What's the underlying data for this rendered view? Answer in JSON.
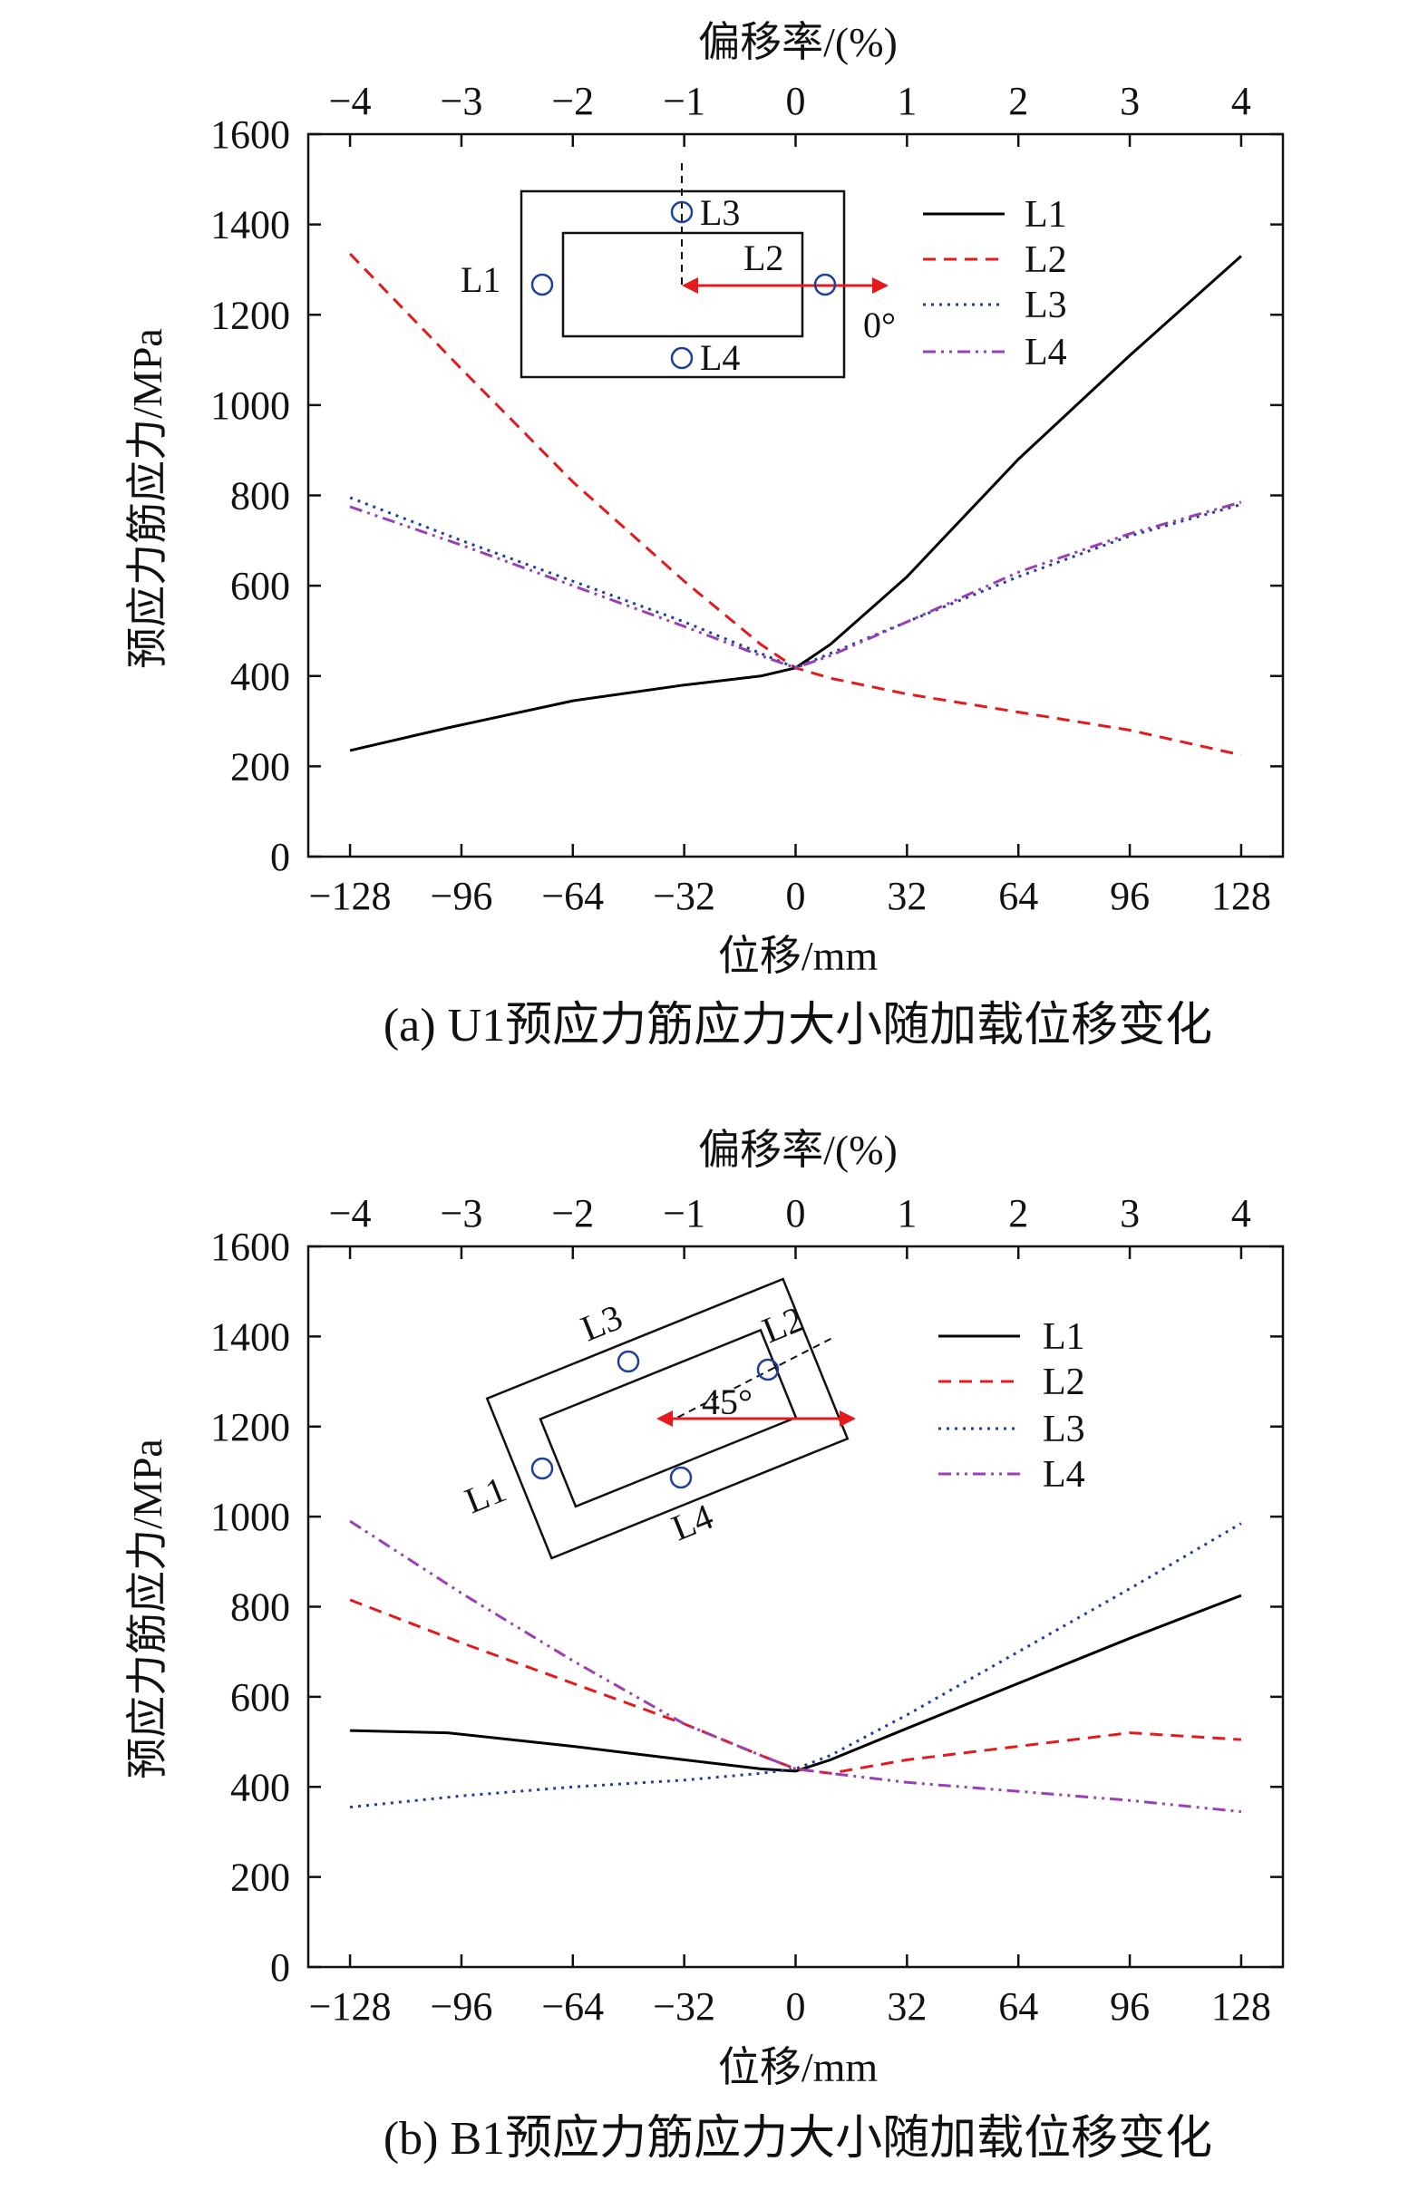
{
  "chart_data": [
    {
      "type": "line",
      "id": "U1",
      "caption": "(a) U1预应力筋应力大小随加载位移变化",
      "xlabel": "位移/mm",
      "ylabel": "预应力筋应力/MPa",
      "x2label": "偏移率/(%)",
      "xlim": [
        -140,
        140
      ],
      "ylim": [
        0,
        1600
      ],
      "xticks": [
        "−128",
        "−96",
        "−64",
        "−32",
        "0",
        "32",
        "64",
        "96",
        "128"
      ],
      "xtick_values": [
        -128,
        -96,
        -64,
        -32,
        0,
        32,
        64,
        96,
        128
      ],
      "yticks": [
        "0",
        "200",
        "400",
        "600",
        "800",
        "1000",
        "1200",
        "1400",
        "1600"
      ],
      "ytick_values": [
        0,
        200,
        400,
        600,
        800,
        1000,
        1200,
        1400,
        1600
      ],
      "x2ticks": [
        "−4",
        "−3",
        "−2",
        "−1",
        "0",
        "1",
        "2",
        "3",
        "4"
      ],
      "x2tick_values": [
        -4,
        -3,
        -2,
        -1,
        0,
        1,
        2,
        3,
        4
      ],
      "legend_position": "top-right",
      "inset": {
        "labels": [
          "L1",
          "L2",
          "L3",
          "L4"
        ],
        "angle_label": "0°"
      },
      "series": [
        {
          "name": "L1",
          "color": "#000000",
          "dash": "none",
          "points": [
            [
              -128,
              235
            ],
            [
              -100,
              285
            ],
            [
              -64,
              345
            ],
            [
              -32,
              380
            ],
            [
              -10,
              400
            ],
            [
              0,
              418
            ],
            [
              10,
              470
            ],
            [
              32,
              620
            ],
            [
              64,
              880
            ],
            [
              96,
              1110
            ],
            [
              128,
              1330
            ]
          ]
        },
        {
          "name": "L2",
          "color": "#e41a1c",
          "dash": "14,9",
          "points": [
            [
              -128,
              1335
            ],
            [
              -96,
              1080
            ],
            [
              -64,
              830
            ],
            [
              -32,
              610
            ],
            [
              -10,
              470
            ],
            [
              0,
              418
            ],
            [
              10,
              395
            ],
            [
              32,
              360
            ],
            [
              64,
              320
            ],
            [
              96,
              280
            ],
            [
              128,
              225
            ]
          ]
        },
        {
          "name": "L3",
          "color": "#1f3f9f",
          "dash": "3,6",
          "points": [
            [
              -128,
              795
            ],
            [
              -96,
              700
            ],
            [
              -64,
              610
            ],
            [
              -32,
              520
            ],
            [
              -10,
              450
            ],
            [
              0,
              418
            ],
            [
              10,
              450
            ],
            [
              32,
              520
            ],
            [
              64,
              620
            ],
            [
              96,
              710
            ],
            [
              128,
              780
            ]
          ]
        },
        {
          "name": "L4",
          "color": "#9b3fb5",
          "dash": "14,6,3,6,3,6",
          "points": [
            [
              -128,
              775
            ],
            [
              -96,
              690
            ],
            [
              -64,
              600
            ],
            [
              -32,
              510
            ],
            [
              -10,
              445
            ],
            [
              0,
              418
            ],
            [
              10,
              445
            ],
            [
              32,
              520
            ],
            [
              64,
              630
            ],
            [
              96,
              715
            ],
            [
              128,
              785
            ]
          ]
        }
      ]
    },
    {
      "type": "line",
      "id": "B1",
      "caption": "(b) B1预应力筋应力大小随加载位移变化",
      "xlabel": "位移/mm",
      "ylabel": "预应力筋应力/MPa",
      "x2label": "偏移率/(%)",
      "xlim": [
        -140,
        140
      ],
      "ylim": [
        0,
        1600
      ],
      "xticks": [
        "−128",
        "−96",
        "−64",
        "−32",
        "0",
        "32",
        "64",
        "96",
        "128"
      ],
      "xtick_values": [
        -128,
        -96,
        -64,
        -32,
        0,
        32,
        64,
        96,
        128
      ],
      "yticks": [
        "0",
        "200",
        "400",
        "600",
        "800",
        "1000",
        "1200",
        "1400",
        "1600"
      ],
      "ytick_values": [
        0,
        200,
        400,
        600,
        800,
        1000,
        1200,
        1400,
        1600
      ],
      "x2ticks": [
        "−4",
        "−3",
        "−2",
        "−1",
        "0",
        "1",
        "2",
        "3",
        "4"
      ],
      "x2tick_values": [
        -4,
        -3,
        -2,
        -1,
        0,
        1,
        2,
        3,
        4
      ],
      "legend_position": "top-right",
      "inset": {
        "labels": [
          "L1",
          "L2",
          "L3",
          "L4"
        ],
        "angle_label": "45°"
      },
      "series": [
        {
          "name": "L1",
          "color": "#000000",
          "dash": "none",
          "points": [
            [
              -128,
              525
            ],
            [
              -100,
              520
            ],
            [
              -64,
              490
            ],
            [
              -32,
              460
            ],
            [
              -10,
              440
            ],
            [
              0,
              435
            ],
            [
              10,
              460
            ],
            [
              32,
              530
            ],
            [
              64,
              630
            ],
            [
              96,
              730
            ],
            [
              128,
              825
            ]
          ]
        },
        {
          "name": "L2",
          "color": "#e41a1c",
          "dash": "14,9",
          "points": [
            [
              -128,
              815
            ],
            [
              -96,
              720
            ],
            [
              -64,
              630
            ],
            [
              -32,
              540
            ],
            [
              -10,
              470
            ],
            [
              0,
              440
            ],
            [
              10,
              430
            ],
            [
              32,
              460
            ],
            [
              64,
              490
            ],
            [
              96,
              520
            ],
            [
              128,
              505
            ]
          ]
        },
        {
          "name": "L3",
          "color": "#1f3f9f",
          "dash": "3,6",
          "points": [
            [
              -128,
              355
            ],
            [
              -96,
              380
            ],
            [
              -64,
              400
            ],
            [
              -32,
              415
            ],
            [
              -10,
              430
            ],
            [
              0,
              440
            ],
            [
              10,
              470
            ],
            [
              32,
              560
            ],
            [
              64,
              700
            ],
            [
              96,
              840
            ],
            [
              128,
              985
            ]
          ]
        },
        {
          "name": "L4",
          "color": "#9b3fb5",
          "dash": "14,6,3,6,3,6",
          "points": [
            [
              -128,
              990
            ],
            [
              -96,
              830
            ],
            [
              -64,
              680
            ],
            [
              -32,
              540
            ],
            [
              -10,
              470
            ],
            [
              0,
              440
            ],
            [
              10,
              430
            ],
            [
              32,
              410
            ],
            [
              64,
              390
            ],
            [
              96,
              370
            ],
            [
              128,
              345
            ]
          ]
        }
      ]
    }
  ]
}
